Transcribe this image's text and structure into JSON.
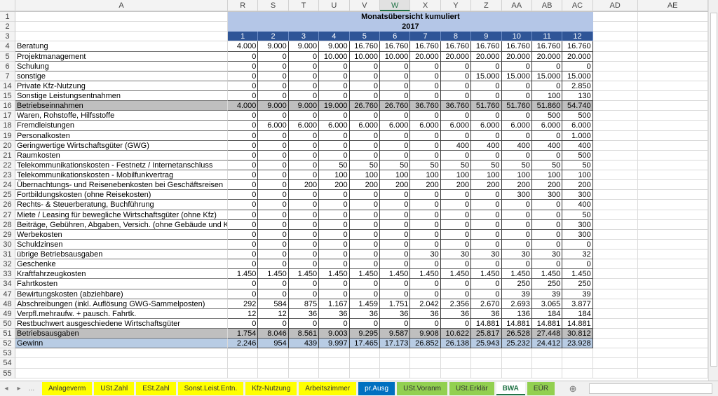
{
  "columns": {
    "A": "A",
    "R": "R",
    "S": "S",
    "T": "T",
    "U": "U",
    "V": "V",
    "W": "W",
    "X": "X",
    "Y": "Y",
    "Z": "Z",
    "AA": "AA",
    "AB": "AB",
    "AC": "AC",
    "AD": "AD",
    "AE": "AE"
  },
  "title": "Monatsübersicht kumuliert",
  "year": "2017",
  "months": [
    "1",
    "2",
    "3",
    "4",
    "5",
    "6",
    "7",
    "8",
    "9",
    "10",
    "11",
    "12"
  ],
  "rows": [
    {
      "n": "4",
      "label": "Beratung",
      "values": [
        "4.000",
        "9.000",
        "9.000",
        "9.000",
        "16.760",
        "16.760",
        "16.760",
        "16.760",
        "16.760",
        "16.760",
        "16.760",
        "16.760"
      ]
    },
    {
      "n": "5",
      "label": "Projektmanagement",
      "values": [
        "0",
        "0",
        "0",
        "10.000",
        "10.000",
        "10.000",
        "20.000",
        "20.000",
        "20.000",
        "20.000",
        "20.000",
        "20.000"
      ]
    },
    {
      "n": "6",
      "label": "Schulung",
      "values": [
        "0",
        "0",
        "0",
        "0",
        "0",
        "0",
        "0",
        "0",
        "0",
        "0",
        "0",
        "0"
      ]
    },
    {
      "n": "7",
      "label": "sonstige",
      "values": [
        "0",
        "0",
        "0",
        "0",
        "0",
        "0",
        "0",
        "0",
        "15.000",
        "15.000",
        "15.000",
        "15.000"
      ]
    },
    {
      "n": "14",
      "label": "Private Kfz-Nutzung",
      "values": [
        "0",
        "0",
        "0",
        "0",
        "0",
        "0",
        "0",
        "0",
        "0",
        "0",
        "0",
        "2.850"
      ]
    },
    {
      "n": "15",
      "label": "Sonstige Leistungsentnahmen",
      "values": [
        "0",
        "0",
        "0",
        "0",
        "0",
        "0",
        "0",
        "0",
        "0",
        "0",
        "100",
        "130"
      ]
    },
    {
      "n": "16",
      "label": "Betriebseinnahmen",
      "style": "tot",
      "values": [
        "4.000",
        "9.000",
        "9.000",
        "19.000",
        "26.760",
        "26.760",
        "36.760",
        "36.760",
        "51.760",
        "51.760",
        "51.860",
        "54.740"
      ]
    },
    {
      "n": "17",
      "label": "Waren, Rohstoffe, Hilfsstoffe",
      "values": [
        "0",
        "0",
        "0",
        "0",
        "0",
        "0",
        "0",
        "0",
        "0",
        "0",
        "500",
        "500"
      ]
    },
    {
      "n": "18",
      "label": "Fremdleistungen",
      "values": [
        "0",
        "6.000",
        "6.000",
        "6.000",
        "6.000",
        "6.000",
        "6.000",
        "6.000",
        "6.000",
        "6.000",
        "6.000",
        "6.000"
      ]
    },
    {
      "n": "19",
      "label": "Personalkosten",
      "values": [
        "0",
        "0",
        "0",
        "0",
        "0",
        "0",
        "0",
        "0",
        "0",
        "0",
        "0",
        "1.000"
      ]
    },
    {
      "n": "20",
      "label": "Geringwertige Wirtschaftsgüter (GWG)",
      "values": [
        "0",
        "0",
        "0",
        "0",
        "0",
        "0",
        "0",
        "400",
        "400",
        "400",
        "400",
        "400"
      ]
    },
    {
      "n": "21",
      "label": "Raumkosten",
      "values": [
        "0",
        "0",
        "0",
        "0",
        "0",
        "0",
        "0",
        "0",
        "0",
        "0",
        "0",
        "500"
      ]
    },
    {
      "n": "22",
      "label": "Telekommunikationskosten - Festnetz / Internetanschluss",
      "values": [
        "0",
        "0",
        "0",
        "50",
        "50",
        "50",
        "50",
        "50",
        "50",
        "50",
        "50",
        "50"
      ]
    },
    {
      "n": "23",
      "label": "Telekommunikationskosten - Mobilfunkvertrag",
      "values": [
        "0",
        "0",
        "0",
        "100",
        "100",
        "100",
        "100",
        "100",
        "100",
        "100",
        "100",
        "100"
      ]
    },
    {
      "n": "24",
      "label": "Übernachtungs- und Reisenebenkosten bei Geschäftsreisen",
      "values": [
        "0",
        "0",
        "200",
        "200",
        "200",
        "200",
        "200",
        "200",
        "200",
        "200",
        "200",
        "200"
      ]
    },
    {
      "n": "25",
      "label": "Fortbildungskosten (ohne Reisekosten)",
      "values": [
        "0",
        "0",
        "0",
        "0",
        "0",
        "0",
        "0",
        "0",
        "0",
        "300",
        "300",
        "300"
      ]
    },
    {
      "n": "26",
      "label": "Rechts- & Steuerberatung, Buchführung",
      "values": [
        "0",
        "0",
        "0",
        "0",
        "0",
        "0",
        "0",
        "0",
        "0",
        "0",
        "0",
        "400"
      ]
    },
    {
      "n": "27",
      "label": "Miete / Leasing für bewegliche Wirtschaftsgüter (ohne Kfz)",
      "values": [
        "0",
        "0",
        "0",
        "0",
        "0",
        "0",
        "0",
        "0",
        "0",
        "0",
        "0",
        "50"
      ]
    },
    {
      "n": "28",
      "label": "Beiträge, Gebühren, Abgaben, Versich. (ohne Gebäude und Kfz)",
      "values": [
        "0",
        "0",
        "0",
        "0",
        "0",
        "0",
        "0",
        "0",
        "0",
        "0",
        "0",
        "300"
      ]
    },
    {
      "n": "29",
      "label": "Werbekosten",
      "values": [
        "0",
        "0",
        "0",
        "0",
        "0",
        "0",
        "0",
        "0",
        "0",
        "0",
        "0",
        "300"
      ]
    },
    {
      "n": "30",
      "label": "Schuldzinsen",
      "values": [
        "0",
        "0",
        "0",
        "0",
        "0",
        "0",
        "0",
        "0",
        "0",
        "0",
        "0",
        "0"
      ]
    },
    {
      "n": "31",
      "label": "übrige Betriebsausgaben",
      "values": [
        "0",
        "0",
        "0",
        "0",
        "0",
        "0",
        "30",
        "30",
        "30",
        "30",
        "30",
        "32"
      ]
    },
    {
      "n": "32",
      "label": "Geschenke",
      "values": [
        "0",
        "0",
        "0",
        "0",
        "0",
        "0",
        "0",
        "0",
        "0",
        "0",
        "0",
        "0"
      ]
    },
    {
      "n": "33",
      "label": "Kraftfahrzeugkosten",
      "values": [
        "1.450",
        "1.450",
        "1.450",
        "1.450",
        "1.450",
        "1.450",
        "1.450",
        "1.450",
        "1.450",
        "1.450",
        "1.450",
        "1.450"
      ]
    },
    {
      "n": "34",
      "label": "Fahrtkosten",
      "values": [
        "0",
        "0",
        "0",
        "0",
        "0",
        "0",
        "0",
        "0",
        "0",
        "250",
        "250",
        "250"
      ]
    },
    {
      "n": "47",
      "label": "Bewirtungskosten (abziehbare)",
      "values": [
        "0",
        "0",
        "0",
        "0",
        "0",
        "0",
        "0",
        "0",
        "0",
        "39",
        "39",
        "39"
      ]
    },
    {
      "n": "48",
      "label": "Abschreibungen (inkl. Auflösung GWG-Sammelposten)",
      "values": [
        "292",
        "584",
        "875",
        "1.167",
        "1.459",
        "1.751",
        "2.042",
        "2.356",
        "2.670",
        "2.693",
        "3.065",
        "3.877"
      ]
    },
    {
      "n": "49",
      "label": "Verpfl.mehraufw. + pausch. Fahrtk.",
      "values": [
        "12",
        "12",
        "36",
        "36",
        "36",
        "36",
        "36",
        "36",
        "36",
        "136",
        "184",
        "184"
      ]
    },
    {
      "n": "50",
      "label": "Restbuchwert ausgeschiedene Wirtschaftsgüter",
      "values": [
        "0",
        "0",
        "0",
        "0",
        "0",
        "0",
        "0",
        "0",
        "14.881",
        "14.881",
        "14.881",
        "14.881"
      ]
    },
    {
      "n": "51",
      "label": "Betriebsausgaben",
      "style": "tot",
      "values": [
        "1.754",
        "8.046",
        "8.561",
        "9.003",
        "9.295",
        "9.587",
        "9.908",
        "10.622",
        "25.817",
        "26.528",
        "27.448",
        "30.812"
      ]
    },
    {
      "n": "52",
      "label": "Gewinn",
      "style": "gain",
      "values": [
        "2.246",
        "954",
        "439",
        "9.997",
        "17.465",
        "17.173",
        "26.852",
        "26.138",
        "25.943",
        "25.232",
        "24.412",
        "23.928"
      ]
    }
  ],
  "empty_rows": [
    "53",
    "54",
    "55"
  ],
  "top_rows": [
    "1",
    "2",
    "3"
  ],
  "tabs": [
    {
      "label": "Anlageverm",
      "color": "y"
    },
    {
      "label": "USt.Zahl",
      "color": "y"
    },
    {
      "label": "ESt.Zahl",
      "color": "y"
    },
    {
      "label": "Sonst.Leist.Entn.",
      "color": "y"
    },
    {
      "label": "Kfz-Nutzung",
      "color": "y"
    },
    {
      "label": "Arbeitszimmer",
      "color": "y"
    },
    {
      "label": "pr.Ausg",
      "color": "b"
    },
    {
      "label": "USt.Voranm",
      "color": "g"
    },
    {
      "label": "USt.Erklär",
      "color": "g"
    },
    {
      "label": "BWA",
      "color": "act"
    },
    {
      "label": "EÜR",
      "color": "g"
    }
  ],
  "tab_nav": {
    "prev": "◂",
    "next": "▸",
    "more": "...",
    "add": "⊕"
  }
}
